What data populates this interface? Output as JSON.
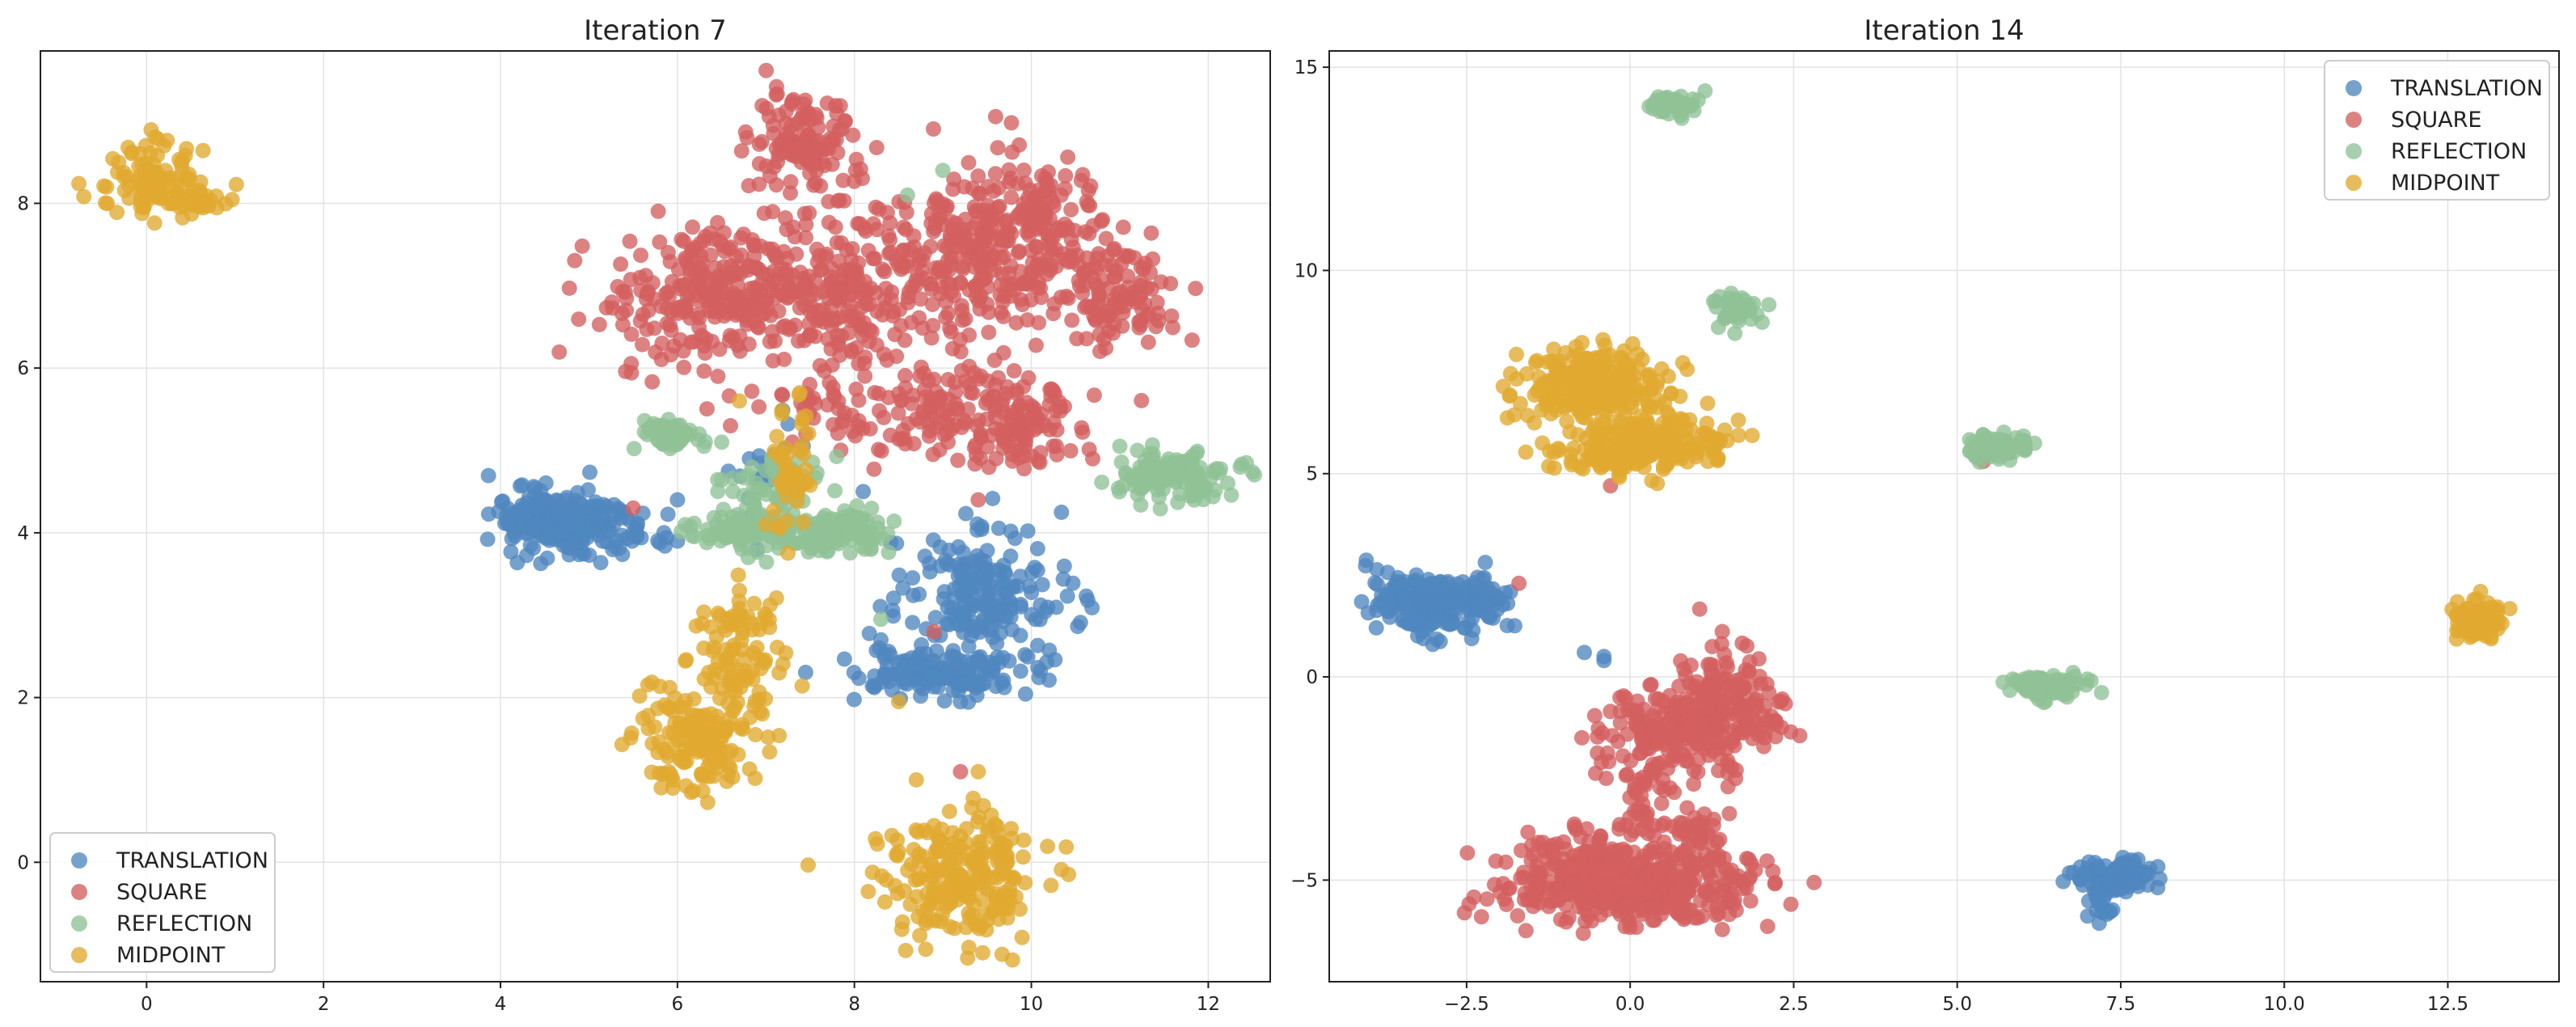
{
  "palette": {
    "TRANSLATION": "#4f86bf",
    "SQUARE": "#d35f5f",
    "REFLECTION": "#8fc196",
    "MIDPOINT": "#e0a92f"
  },
  "chart_data": [
    {
      "type": "scatter",
      "title": "Iteration 7",
      "xlabel": "",
      "ylabel": "",
      "xlim": [
        -1.2,
        12.7
      ],
      "ylim": [
        -1.45,
        9.85
      ],
      "xticks": [
        0,
        2,
        4,
        6,
        8,
        10,
        12
      ],
      "yticks": [
        0,
        2,
        4,
        6,
        8
      ],
      "grid": true,
      "legend_position": "lower-left",
      "legend": [
        "TRANSLATION",
        "SQUARE",
        "REFLECTION",
        "MIDPOINT"
      ],
      "series": [
        {
          "name": "TRANSLATION",
          "color": "#4f86bf",
          "clusters": [
            {
              "cx": 4.6,
              "cy": 4.15,
              "sx": 0.35,
              "sy": 0.2,
              "n": 200
            },
            {
              "cx": 5.4,
              "cy": 4.05,
              "sx": 0.3,
              "sy": 0.15,
              "n": 40
            },
            {
              "cx": 9.5,
              "cy": 3.3,
              "sx": 0.45,
              "sy": 0.4,
              "n": 180
            },
            {
              "cx": 9.0,
              "cy": 2.3,
              "sx": 0.5,
              "sy": 0.15,
              "n": 150
            },
            {
              "cx": 6.9,
              "cy": 4.8,
              "sx": 0.2,
              "sy": 0.3,
              "n": 20
            }
          ],
          "points": [
            [
              6.0,
              4.4
            ],
            [
              6.0,
              3.9
            ],
            [
              8.1,
              4.5
            ],
            [
              6.9,
              3.8
            ],
            [
              8.3,
              2.7
            ]
          ]
        },
        {
          "name": "SQUARE",
          "color": "#d35f5f",
          "clusters": [
            {
              "cx": 7.4,
              "cy": 8.7,
              "sx": 0.3,
              "sy": 0.3,
              "n": 130
            },
            {
              "cx": 6.4,
              "cy": 6.9,
              "sx": 0.55,
              "sy": 0.45,
              "n": 260
            },
            {
              "cx": 7.9,
              "cy": 6.9,
              "sx": 0.45,
              "sy": 0.45,
              "n": 200
            },
            {
              "cx": 9.3,
              "cy": 7.4,
              "sx": 0.5,
              "sy": 0.55,
              "n": 230
            },
            {
              "cx": 10.1,
              "cy": 7.8,
              "sx": 0.35,
              "sy": 0.35,
              "n": 110
            },
            {
              "cx": 10.9,
              "cy": 6.9,
              "sx": 0.4,
              "sy": 0.3,
              "n": 120
            },
            {
              "cx": 9.3,
              "cy": 5.4,
              "sx": 0.6,
              "sy": 0.3,
              "n": 140
            },
            {
              "cx": 10.0,
              "cy": 5.2,
              "sx": 0.3,
              "sy": 0.25,
              "n": 60
            },
            {
              "cx": 7.8,
              "cy": 5.5,
              "sx": 0.5,
              "sy": 0.3,
              "n": 40
            }
          ],
          "points": [
            [
              8.9,
              2.8
            ],
            [
              9.4,
              4.4
            ],
            [
              9.2,
              1.1
            ],
            [
              7.3,
              5.1
            ],
            [
              6.6,
              5.3
            ],
            [
              5.5,
              4.3
            ]
          ]
        },
        {
          "name": "REFLECTION",
          "color": "#8fc196",
          "clusters": [
            {
              "cx": 5.9,
              "cy": 5.2,
              "sx": 0.15,
              "sy": 0.1,
              "n": 60
            },
            {
              "cx": 6.7,
              "cy": 4.05,
              "sx": 0.25,
              "sy": 0.1,
              "n": 90
            },
            {
              "cx": 7.75,
              "cy": 4.0,
              "sx": 0.35,
              "sy": 0.12,
              "n": 120
            },
            {
              "cx": 7.1,
              "cy": 4.6,
              "sx": 0.3,
              "sy": 0.25,
              "n": 60
            },
            {
              "cx": 11.6,
              "cy": 4.7,
              "sx": 0.35,
              "sy": 0.15,
              "n": 130
            }
          ],
          "points": [
            [
              11.0,
              5.05
            ],
            [
              11.2,
              5.0
            ],
            [
              6.5,
              5.1
            ],
            [
              6.3,
              5.05
            ],
            [
              8.3,
              2.95
            ],
            [
              9.0,
              8.4
            ],
            [
              8.6,
              8.1
            ],
            [
              6.8,
              3.7
            ]
          ]
        },
        {
          "name": "MIDPOINT",
          "color": "#e0a92f",
          "clusters": [
            {
              "cx": 0.0,
              "cy": 8.25,
              "sx": 0.25,
              "sy": 0.25,
              "n": 100
            },
            {
              "cx": 0.6,
              "cy": 8.05,
              "sx": 0.2,
              "sy": 0.08,
              "n": 30
            },
            {
              "cx": 6.7,
              "cy": 2.6,
              "sx": 0.25,
              "sy": 0.35,
              "n": 90
            },
            {
              "cx": 6.3,
              "cy": 1.5,
              "sx": 0.35,
              "sy": 0.35,
              "n": 160
            },
            {
              "cx": 9.2,
              "cy": -0.15,
              "sx": 0.45,
              "sy": 0.4,
              "n": 230
            },
            {
              "cx": 7.3,
              "cy": 4.8,
              "sx": 0.15,
              "sy": 0.4,
              "n": 50
            }
          ],
          "points": [
            [
              6.7,
              5.6
            ],
            [
              8.5,
              1.95
            ],
            [
              8.7,
              1.0
            ],
            [
              7.0,
              4.1
            ],
            [
              9.4,
              1.1
            ]
          ]
        }
      ]
    },
    {
      "type": "scatter",
      "title": "Iteration 14",
      "xlabel": "",
      "ylabel": "",
      "xlim": [
        -4.6,
        14.2
      ],
      "ylim": [
        -7.5,
        15.4
      ],
      "xticks": [
        -2.5,
        0.0,
        2.5,
        5.0,
        7.5,
        10.0,
        12.5
      ],
      "xtick_labels": [
        "−2.5",
        "0.0",
        "2.5",
        "5.0",
        "7.5",
        "10.0",
        "12.5"
      ],
      "yticks": [
        -5,
        0,
        5,
        10,
        15
      ],
      "ytick_labels": [
        "−5",
        "0",
        "5",
        "10",
        "15"
      ],
      "grid": true,
      "legend_position": "upper-right",
      "legend": [
        "TRANSLATION",
        "SQUARE",
        "REFLECTION",
        "MIDPOINT"
      ],
      "series": [
        {
          "name": "TRANSLATION",
          "color": "#4f86bf",
          "clusters": [
            {
              "cx": -3.0,
              "cy": 1.8,
              "sx": 0.45,
              "sy": 0.35,
              "n": 260
            },
            {
              "cx": -2.2,
              "cy": 2.0,
              "sx": 0.2,
              "sy": 0.2,
              "n": 30
            },
            {
              "cx": 7.5,
              "cy": -4.9,
              "sx": 0.35,
              "sy": 0.2,
              "n": 110
            },
            {
              "cx": 7.2,
              "cy": -5.6,
              "sx": 0.12,
              "sy": 0.25,
              "n": 25
            }
          ],
          "points": [
            [
              -0.7,
              0.6
            ],
            [
              -0.4,
              0.5
            ],
            [
              -0.4,
              0.4
            ]
          ]
        },
        {
          "name": "SQUARE",
          "color": "#d35f5f",
          "clusters": [
            {
              "cx": 0.1,
              "cy": -5.1,
              "sx": 0.9,
              "sy": 0.5,
              "n": 420
            },
            {
              "cx": -0.6,
              "cy": -4.6,
              "sx": 0.6,
              "sy": 0.6,
              "n": 120
            },
            {
              "cx": 0.6,
              "cy": -1.3,
              "sx": 0.55,
              "sy": 0.5,
              "n": 160
            },
            {
              "cx": 1.4,
              "cy": -0.7,
              "sx": 0.45,
              "sy": 0.7,
              "n": 170
            },
            {
              "cx": 0.3,
              "cy": -2.9,
              "sx": 0.3,
              "sy": 0.6,
              "n": 50
            },
            {
              "cx": 1.0,
              "cy": -3.7,
              "sx": 0.25,
              "sy": 0.2,
              "n": 30
            }
          ],
          "points": [
            [
              -1.7,
              2.3
            ],
            [
              -0.3,
              4.7
            ],
            [
              5.4,
              5.3
            ]
          ]
        },
        {
          "name": "REFLECTION",
          "color": "#8fc196",
          "clusters": [
            {
              "cx": 0.65,
              "cy": 14.1,
              "sx": 0.18,
              "sy": 0.15,
              "n": 45
            },
            {
              "cx": 1.6,
              "cy": 9.1,
              "sx": 0.2,
              "sy": 0.2,
              "n": 45
            },
            {
              "cx": 5.6,
              "cy": 5.65,
              "sx": 0.25,
              "sy": 0.15,
              "n": 70
            },
            {
              "cx": 6.4,
              "cy": -0.25,
              "sx": 0.3,
              "sy": 0.15,
              "n": 90
            }
          ],
          "points": [
            [
              1.85,
              8.8
            ],
            [
              1.35,
              8.6
            ]
          ]
        },
        {
          "name": "MIDPOINT",
          "color": "#e0a92f",
          "clusters": [
            {
              "cx": -0.6,
              "cy": 7.2,
              "sx": 0.5,
              "sy": 0.45,
              "n": 250
            },
            {
              "cx": 0.4,
              "cy": 5.8,
              "sx": 0.5,
              "sy": 0.35,
              "n": 200
            },
            {
              "cx": -0.4,
              "cy": 5.4,
              "sx": 0.4,
              "sy": 0.2,
              "n": 60
            },
            {
              "cx": 13.0,
              "cy": 1.4,
              "sx": 0.2,
              "sy": 0.2,
              "n": 90
            }
          ],
          "points": [
            [
              13.0,
              2.1
            ],
            [
              12.9,
              1.9
            ]
          ]
        }
      ]
    }
  ]
}
